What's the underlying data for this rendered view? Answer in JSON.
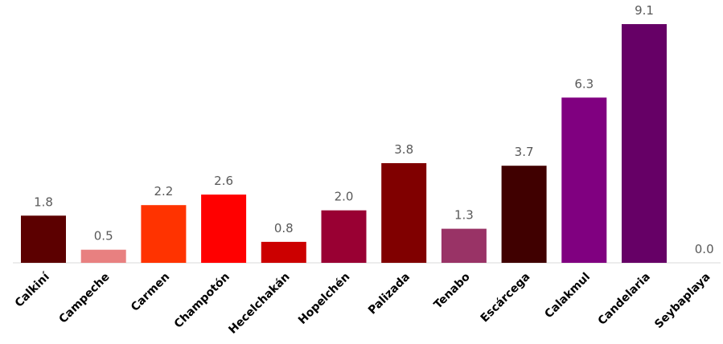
{
  "chart_data": {
    "type": "bar",
    "categories": [
      "Calkiní",
      "Campeche",
      "Carmen",
      "Champotón",
      "Hecelchakán",
      "Hopelchén",
      "Palizada",
      "Tenabo",
      "Escárcega",
      "Calakmul",
      "Candelaria",
      "Seybaplaya"
    ],
    "values": [
      1.8,
      0.5,
      2.2,
      2.6,
      0.8,
      2.0,
      3.8,
      1.3,
      3.7,
      6.3,
      9.1,
      0.0
    ],
    "value_labels": [
      "1.8",
      "0.5",
      "2.2",
      "2.6",
      "0.8",
      "2.0",
      "3.8",
      "1.3",
      "3.7",
      "6.3",
      "9.1",
      "0.0"
    ],
    "colors": [
      "#5c0000",
      "#e88080",
      "#ff3300",
      "#ff0000",
      "#cc0000",
      "#990033",
      "#800000",
      "#993366",
      "#400000",
      "#800080",
      "#660066",
      "#000000"
    ],
    "ylim": [
      0,
      9.1
    ],
    "grid": false,
    "legend": false,
    "title": "",
    "xlabel": "",
    "ylabel": ""
  }
}
